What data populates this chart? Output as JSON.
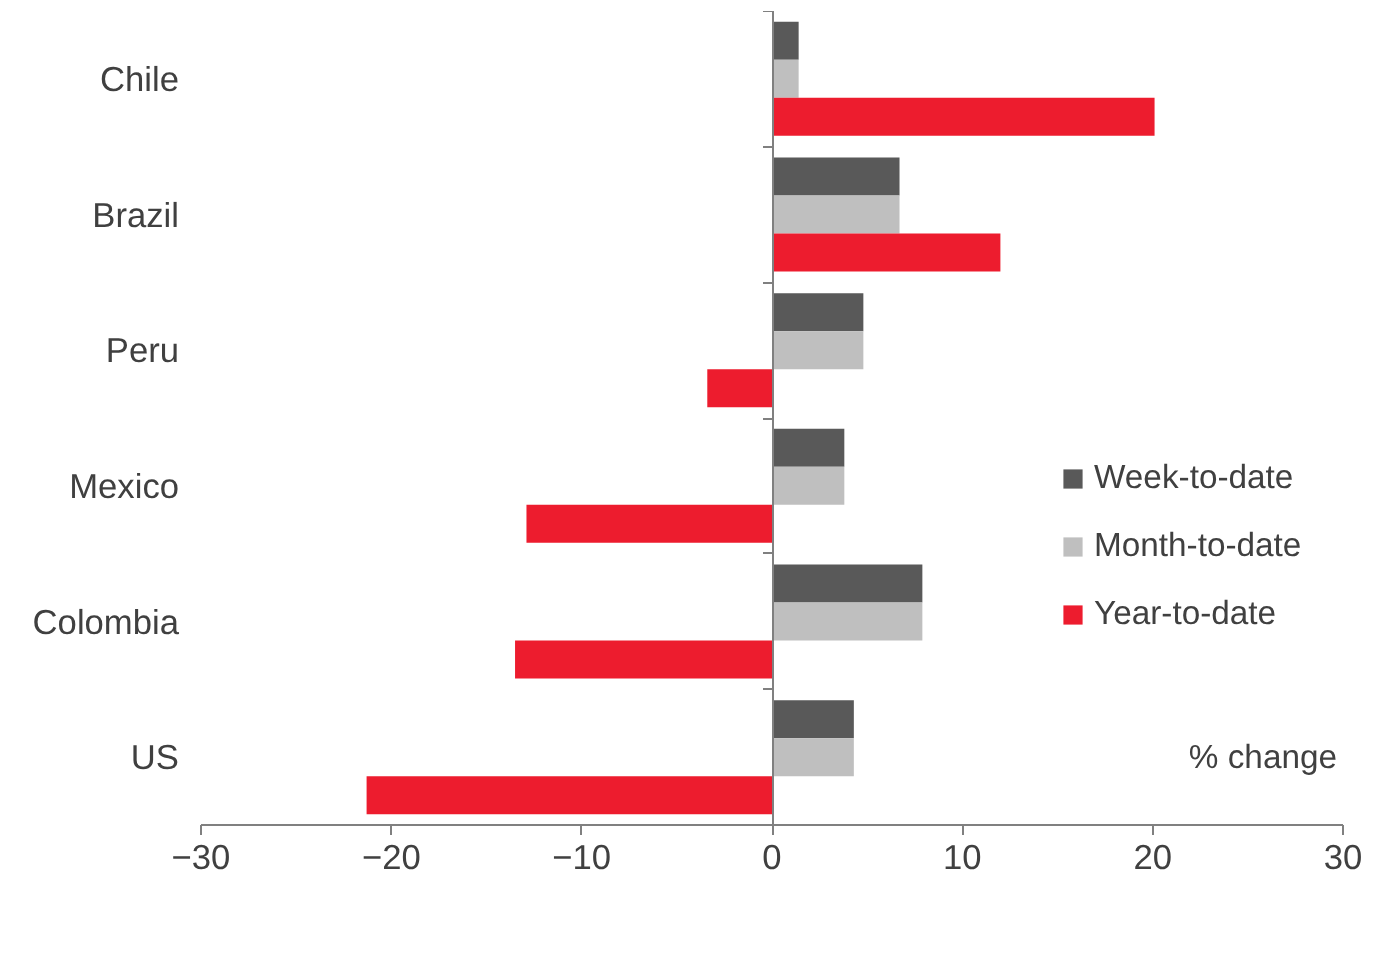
{
  "chart_data": {
    "type": "bar",
    "orientation": "horizontal",
    "categories": [
      "Chile",
      "Brazil",
      "Peru",
      "Mexico",
      "Colombia",
      "US"
    ],
    "series": [
      {
        "name": "Week-to-date",
        "color": "#595959",
        "values": [
          1.4,
          6.7,
          4.8,
          3.8,
          7.9,
          4.3
        ]
      },
      {
        "name": "Month-to-date",
        "color": "#bfbfbf",
        "values": [
          1.4,
          6.7,
          4.8,
          3.8,
          7.9,
          4.3
        ]
      },
      {
        "name": "Year-to-date",
        "color": "#ed1c2e",
        "values": [
          20.1,
          12.0,
          -3.4,
          -12.9,
          -13.5,
          -21.3
        ]
      }
    ],
    "xlim": [
      -30,
      30
    ],
    "xticks": [
      -30,
      -20,
      -10,
      0,
      10,
      20,
      30
    ],
    "annotations": [
      "% change"
    ],
    "legend": "right"
  }
}
